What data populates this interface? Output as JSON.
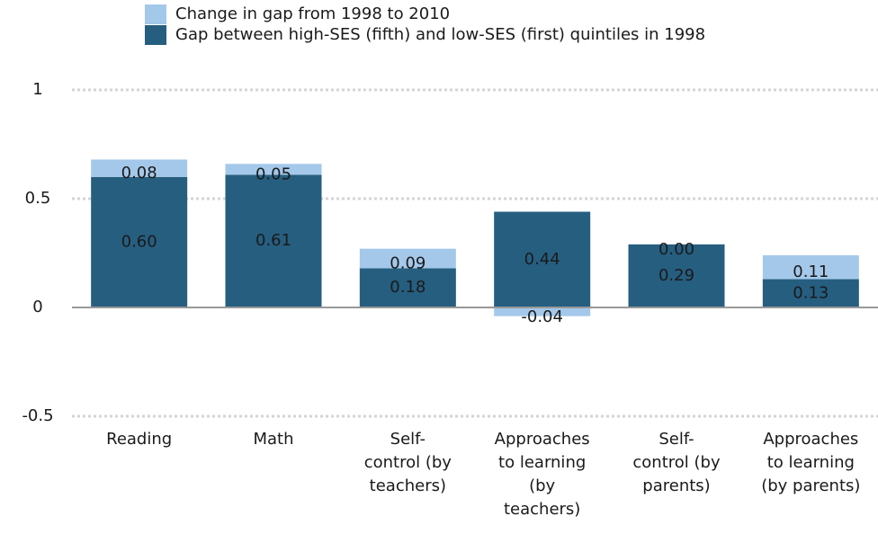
{
  "chart_data": {
    "type": "bar",
    "stacked": true,
    "categories": [
      "Reading",
      "Math",
      "Self-\ncontrol (by\nteachers)",
      "Approaches\nto learning\n(by\nteachers)",
      "Self-\ncontrol (by\nparents)",
      "Approaches\nto learning\n(by parents)"
    ],
    "series": [
      {
        "name": "Change in gap from 1998 to 2010",
        "color": "#a4c8ea",
        "values": [
          0.08,
          0.05,
          0.09,
          -0.04,
          0.0,
          0.11
        ],
        "value_labels": [
          "0.08",
          "0.05",
          "0.09",
          "-0.04",
          "0.00",
          "0.11"
        ]
      },
      {
        "name": "Gap between high-SES (fifth) and low-SES (first) quintiles in 1998",
        "color": "#265e80",
        "values": [
          0.6,
          0.61,
          0.18,
          0.44,
          0.29,
          0.13
        ],
        "value_labels": [
          "0.60",
          "0.61",
          "0.18",
          "0.44",
          "0.29",
          "0.13"
        ]
      }
    ],
    "ylim": [
      -0.5,
      1
    ],
    "yticks": [
      -0.5,
      0,
      0.5,
      1
    ],
    "grid": true
  }
}
